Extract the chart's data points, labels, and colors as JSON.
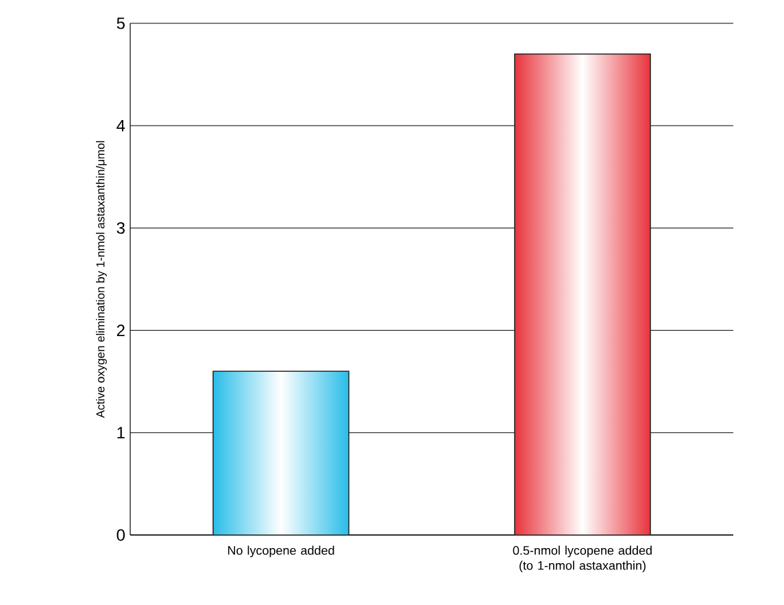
{
  "chart_data": {
    "type": "bar",
    "ylabel": "Active oxygen elimination by 1-nmol astaxanthin/μmol",
    "categories": [
      "No lycopene added",
      "0.5-nmol lycopene added (to 1-nmol astaxanthin)"
    ],
    "values": [
      1.6,
      4.7
    ],
    "colors": [
      "#29bde8",
      "#e8343c"
    ],
    "ylim": [
      0,
      5
    ],
    "yticks": [
      0,
      1,
      2,
      3,
      4,
      5
    ],
    "grid": "y"
  }
}
